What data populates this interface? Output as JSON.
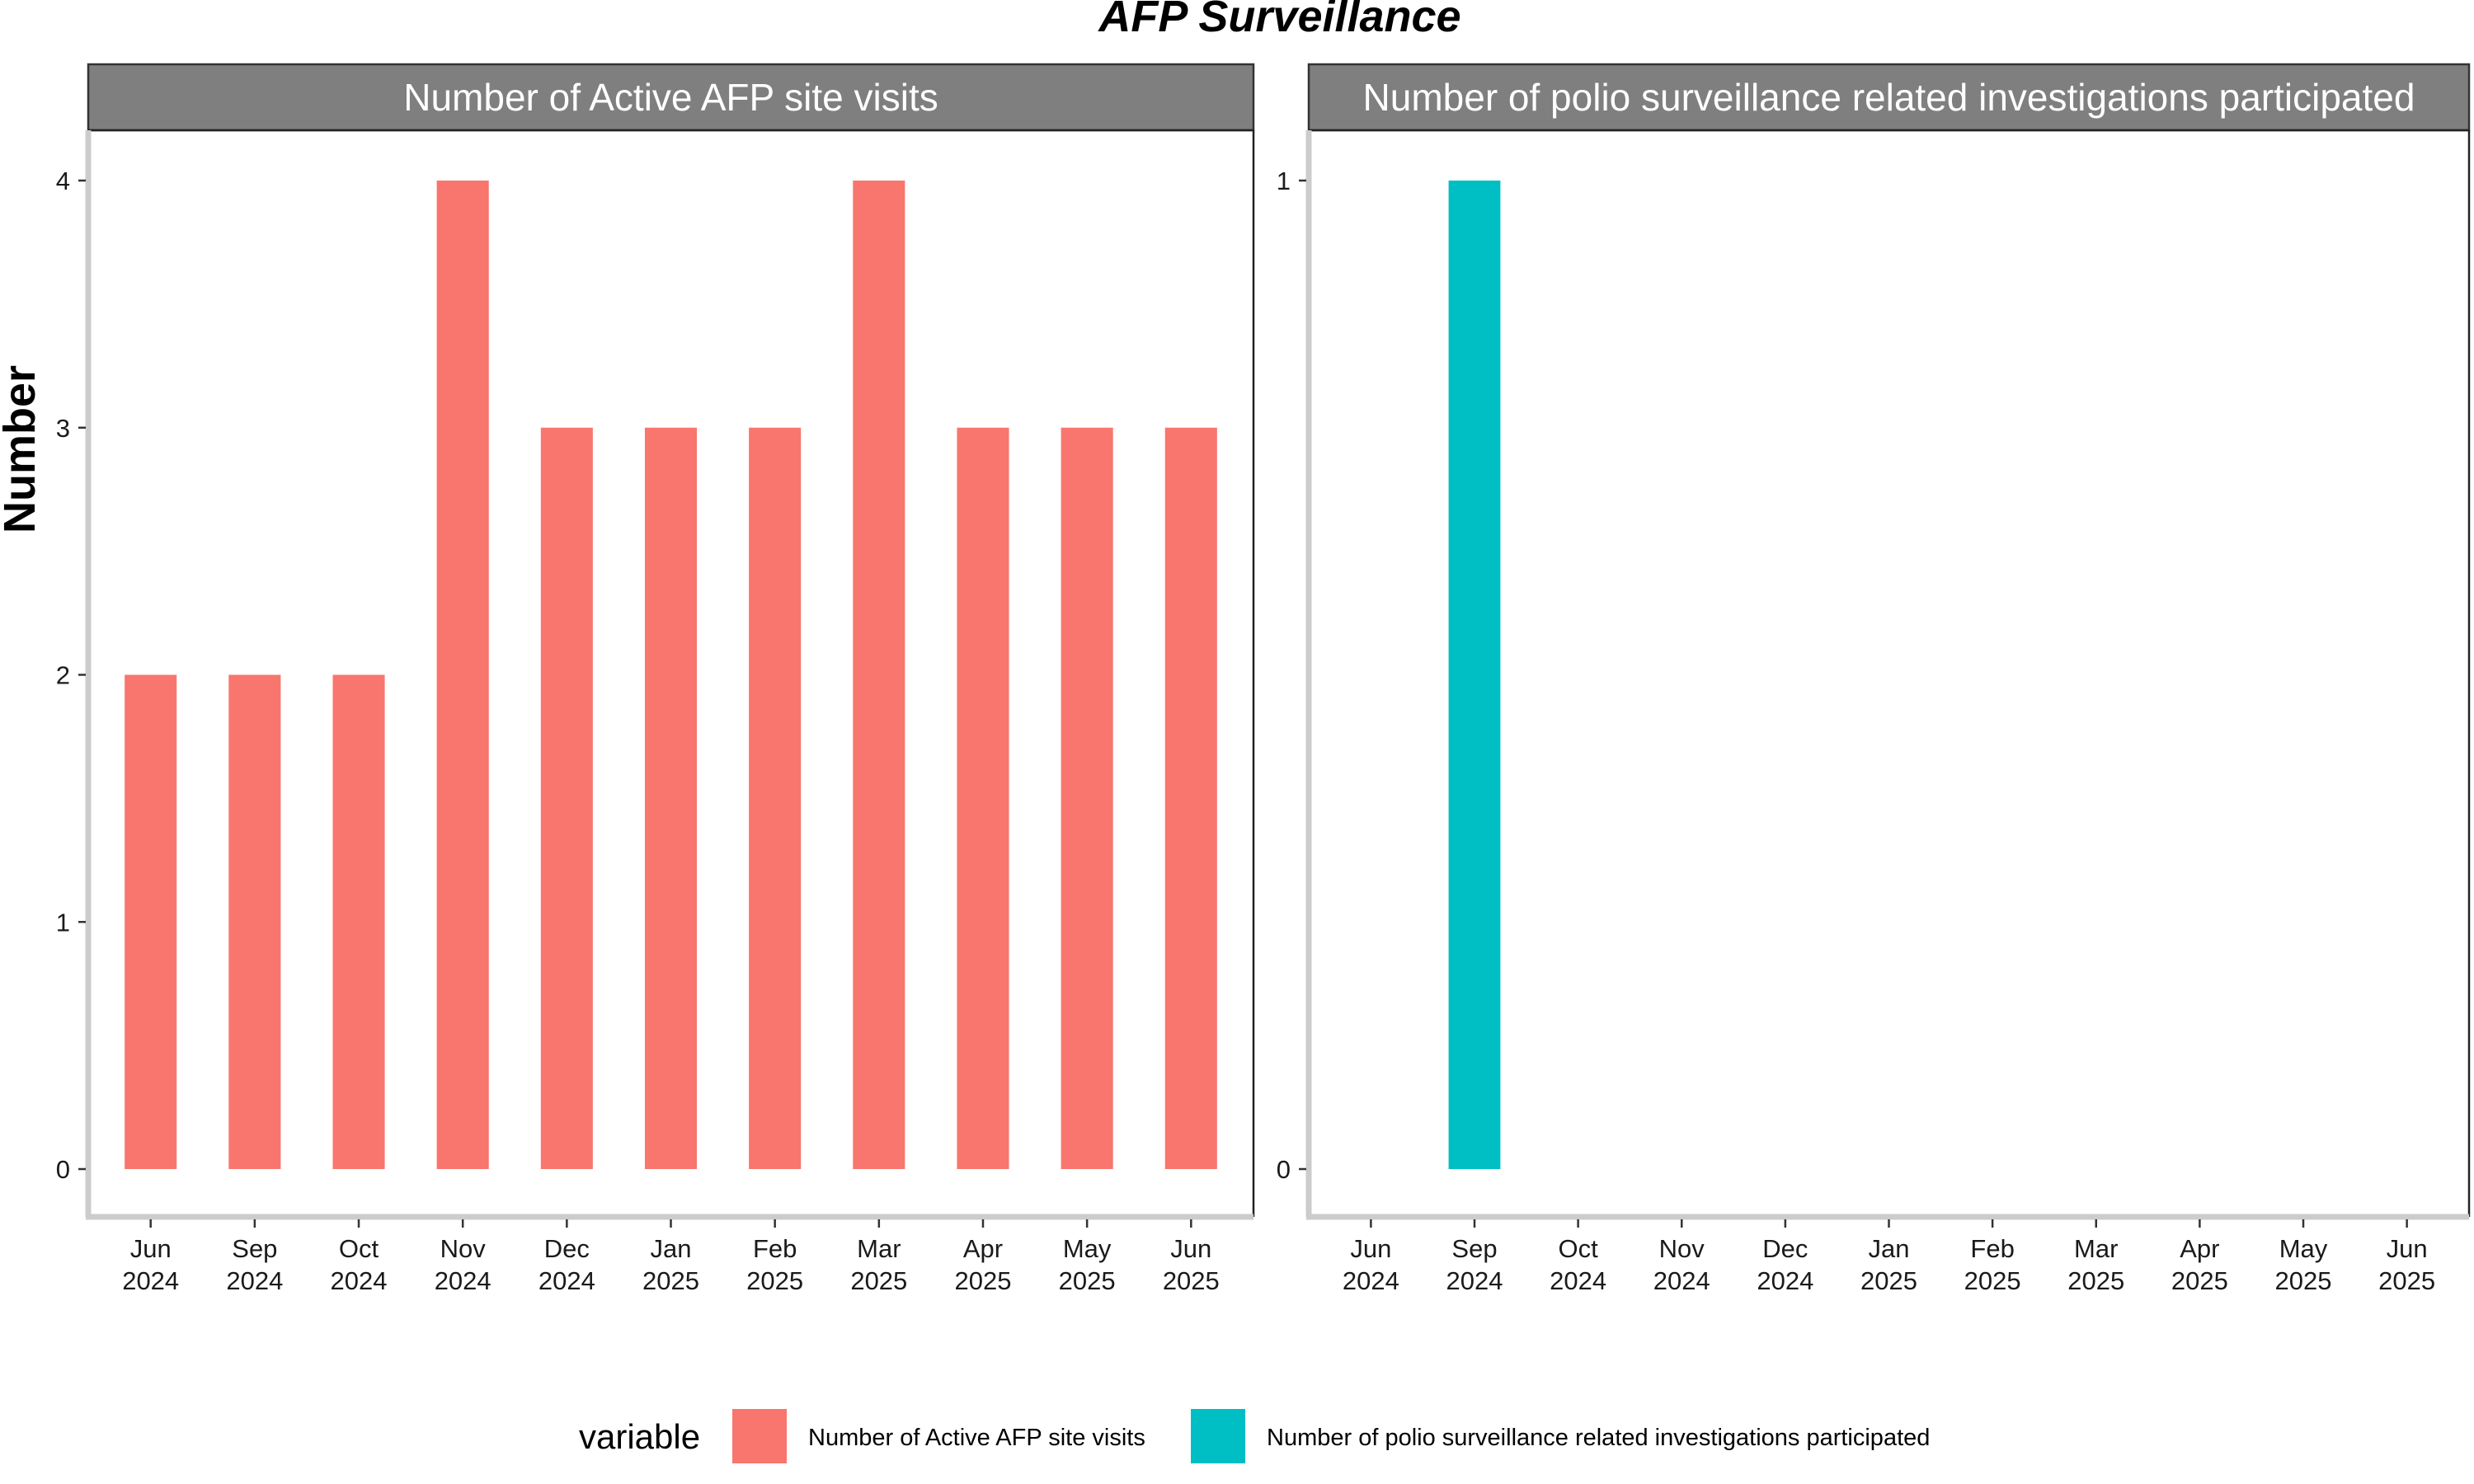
{
  "chart_data": {
    "type": "bar",
    "title": "AFP Surveillance",
    "ylabel": "Number",
    "xlabel": "",
    "grid": false,
    "legend": {
      "title": "variable",
      "position": "bottom",
      "entries": [
        {
          "label": "Number of Active AFP site visits",
          "color": "#F8766D"
        },
        {
          "label": "Number of polio surveillance related investigations participated",
          "color": "#00BFC4"
        }
      ]
    },
    "categories": [
      [
        "Jun",
        "2024"
      ],
      [
        "Sep",
        "2024"
      ],
      [
        "Oct",
        "2024"
      ],
      [
        "Nov",
        "2024"
      ],
      [
        "Dec",
        "2024"
      ],
      [
        "Jan",
        "2025"
      ],
      [
        "Feb",
        "2025"
      ],
      [
        "Mar",
        "2025"
      ],
      [
        "Apr",
        "2025"
      ],
      [
        "May",
        "2025"
      ],
      [
        "Jun",
        "2025"
      ]
    ],
    "panels": [
      {
        "strip": "Number of Active AFP site visits",
        "color": "#F8766D",
        "values": [
          2,
          2,
          2,
          4,
          3,
          3,
          3,
          4,
          3,
          3,
          3
        ],
        "ylim": [
          0,
          4
        ],
        "yticks": [
          "0",
          "1",
          "2",
          "3",
          "4"
        ]
      },
      {
        "strip": "Number of polio surveillance related investigations participated",
        "color": "#00BFC4",
        "values": [
          null,
          1,
          null,
          null,
          null,
          null,
          null,
          null,
          null,
          null,
          null
        ],
        "ylim": [
          0,
          1
        ],
        "yticks": [
          "0",
          "1"
        ]
      }
    ]
  }
}
